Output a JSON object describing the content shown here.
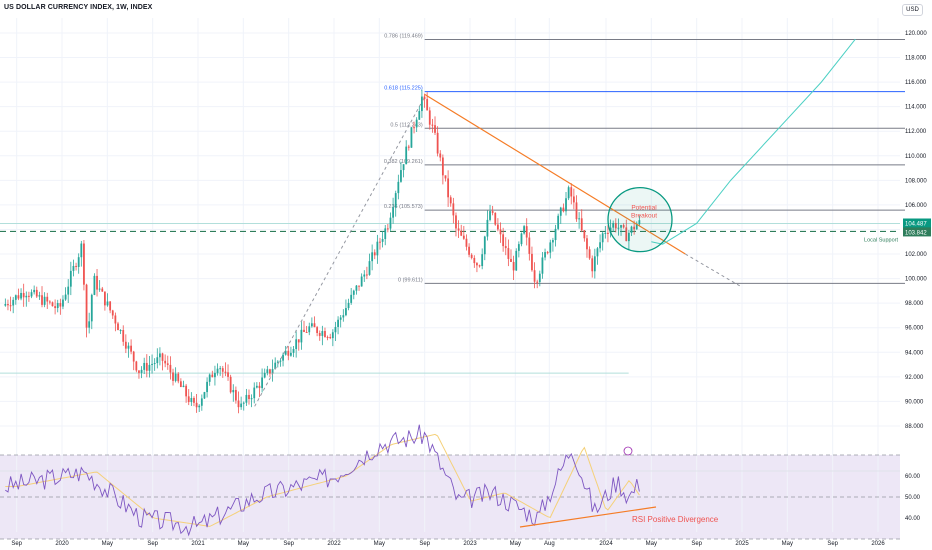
{
  "header": {
    "title": "US DOLLAR CURRENCY INDEX, 1W, INDEX",
    "currency": "USD"
  },
  "colors": {
    "up": "#26a69a",
    "down": "#ef5350",
    "trendline": "#f57c26",
    "fib": "#787b86",
    "fib_618": "#2962ff",
    "support": "#2e7d5b",
    "projection": "#4dd0c4",
    "rsi_line": "#7e57c2",
    "rsi_ma": "#f5d17a",
    "rsi_band": "#ede7f6",
    "breakout_circle": "#089981",
    "annotation_text": "#ef5350",
    "grid": "#f0f3fa"
  },
  "price_axis": {
    "ticks": [
      "120.000",
      "118.000",
      "116.000",
      "114.000",
      "112.000",
      "110.000",
      "108.000",
      "106.000",
      "104.000",
      "102.000",
      "100.000",
      "98.000",
      "96.000",
      "94.000",
      "92.000",
      "90.000",
      "88.000"
    ],
    "current_price_label": "104.487",
    "support_price_label": "103.842"
  },
  "rsi_axis": {
    "ticks": [
      "60.00",
      "50.00",
      "40.00"
    ]
  },
  "time_axis": {
    "ticks": [
      "Sep",
      "2020",
      "May",
      "Sep",
      "2021",
      "May",
      "Sep",
      "2022",
      "May",
      "Sep",
      "2023",
      "May",
      "Aug",
      "2024",
      "May",
      "Sep",
      "2025",
      "May",
      "Sep",
      "2026"
    ]
  },
  "fib_levels": [
    {
      "label": "0.786 (119.469)",
      "value": 119.469
    },
    {
      "label": "0.618 (115.225)",
      "value": 115.225
    },
    {
      "label": "0.5 (112.243)",
      "value": 112.243
    },
    {
      "label": "0.382 (109.261)",
      "value": 109.261
    },
    {
      "label": "0.236 (105.573)",
      "value": 105.573
    },
    {
      "label": "0 (99.611)",
      "value": 99.611
    }
  ],
  "annotations": {
    "breakout_line1": "Potential",
    "breakout_line2": "Breakout",
    "local_support": "Local Support",
    "rsi_divergence": "RSI Positive Divergence"
  },
  "chart_data": {
    "type": "candlestick",
    "title": "US DOLLAR CURRENCY INDEX, 1W, INDEX",
    "ylim": [
      87.5,
      122
    ],
    "rsi_ylim": [
      33,
      82
    ],
    "rsi_levels": [
      70,
      50,
      30
    ],
    "key_points": [
      {
        "date": "2019-08",
        "value": 97.8
      },
      {
        "date": "2019-10",
        "value": 99.0
      },
      {
        "date": "2020-01",
        "value": 97.5
      },
      {
        "date": "2020-03",
        "value": 102.8
      },
      {
        "date": "2020-03-15",
        "value": 95.0
      },
      {
        "date": "2020-04",
        "value": 100.0
      },
      {
        "date": "2020-06",
        "value": 96.5
      },
      {
        "date": "2020-08",
        "value": 92.5
      },
      {
        "date": "2020-10",
        "value": 93.5
      },
      {
        "date": "2021-01",
        "value": 89.4
      },
      {
        "date": "2021-03",
        "value": 93.2
      },
      {
        "date": "2021-05",
        "value": 89.5
      },
      {
        "date": "2021-08",
        "value": 93.0
      },
      {
        "date": "2021-11",
        "value": 96.0
      },
      {
        "date": "2022-01",
        "value": 95.5
      },
      {
        "date": "2022-04",
        "value": 100.5
      },
      {
        "date": "2022-06",
        "value": 104.5
      },
      {
        "date": "2022-07",
        "value": 108.5
      },
      {
        "date": "2022-09",
        "value": 114.8
      },
      {
        "date": "2022-10",
        "value": 112.0
      },
      {
        "date": "2022-12",
        "value": 104.0
      },
      {
        "date": "2023-02",
        "value": 101.0
      },
      {
        "date": "2023-03",
        "value": 105.5
      },
      {
        "date": "2023-05",
        "value": 100.8
      },
      {
        "date": "2023-06",
        "value": 104.0
      },
      {
        "date": "2023-07",
        "value": 99.8
      },
      {
        "date": "2023-10",
        "value": 107.2
      },
      {
        "date": "2023-12",
        "value": 100.9
      },
      {
        "date": "2024-01",
        "value": 103.8
      },
      {
        "date": "2024-02",
        "value": 104.5
      },
      {
        "date": "2024-03",
        "value": 103.5
      },
      {
        "date": "2024-04",
        "value": 104.5
      }
    ],
    "projection": [
      {
        "date": "2024-06",
        "value": 102.8
      },
      {
        "date": "2024-09",
        "value": 104.5
      },
      {
        "date": "2024-12",
        "value": 108.0
      },
      {
        "date": "2025-04",
        "value": 112.0
      },
      {
        "date": "2025-08",
        "value": 116.0
      },
      {
        "date": "2025-11",
        "value": 119.5
      }
    ],
    "rsi_points": [
      {
        "date": "2019-08",
        "value": 55
      },
      {
        "date": "2020-03",
        "value": 62
      },
      {
        "date": "2020-08",
        "value": 40
      },
      {
        "date": "2021-01",
        "value": 36
      },
      {
        "date": "2021-06",
        "value": 50
      },
      {
        "date": "2022-01",
        "value": 60
      },
      {
        "date": "2022-05",
        "value": 75
      },
      {
        "date": "2022-09",
        "value": 80
      },
      {
        "date": "2022-12",
        "value": 48
      },
      {
        "date": "2023-03",
        "value": 52
      },
      {
        "date": "2023-07",
        "value": 40
      },
      {
        "date": "2023-10",
        "value": 74
      },
      {
        "date": "2023-12",
        "value": 43
      },
      {
        "date": "2024-02",
        "value": 58
      },
      {
        "date": "2024-03",
        "value": 50
      },
      {
        "date": "2024-04",
        "value": 57
      }
    ],
    "support_level": 103.842,
    "current_price": 104.487,
    "lower_reference_level": 92.3
  }
}
